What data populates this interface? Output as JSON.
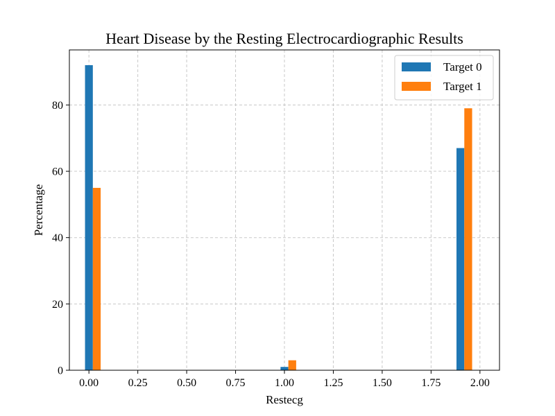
{
  "chart_data": {
    "type": "bar",
    "title": "Heart Disease by the Resting Electrocardiographic Results",
    "xlabel": "Restecg",
    "ylabel": "Percentage",
    "xlim": [
      -0.1,
      2.1
    ],
    "ylim": [
      0,
      96.6
    ],
    "x_ticks": [
      "0.00",
      "0.25",
      "0.50",
      "0.75",
      "1.00",
      "1.25",
      "1.50",
      "1.75",
      "2.00"
    ],
    "y_ticks": [
      "0",
      "20",
      "40",
      "60",
      "80"
    ],
    "grid": true,
    "legend_position": "top-right",
    "bar_width": 0.04,
    "series": [
      {
        "name": "Target 0",
        "color": "#1f77b4",
        "points": [
          {
            "x": 0.0,
            "value": 92
          },
          {
            "x": 1.0,
            "value": 1
          },
          {
            "x": 1.9,
            "value": 67
          }
        ]
      },
      {
        "name": "Target 1",
        "color": "#ff7f0e",
        "points": [
          {
            "x": 0.04,
            "value": 55
          },
          {
            "x": 1.04,
            "value": 3
          },
          {
            "x": 1.94,
            "value": 79
          }
        ]
      }
    ]
  }
}
